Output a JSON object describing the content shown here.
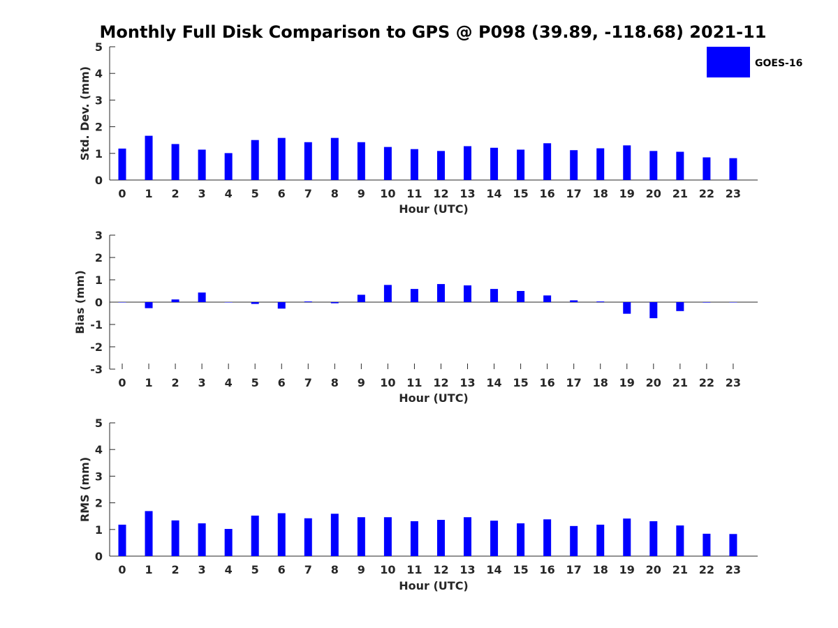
{
  "figure_title": "Monthly Full Disk Comparison to GPS @ P098 (39.89, -118.68) 2021-11",
  "legend": {
    "label": "GOES-16",
    "color": "#0000ff"
  },
  "chart_data": [
    {
      "type": "bar",
      "xlabel": "Hour (UTC)",
      "ylabel": "Std. Dev. (mm)",
      "ylim": [
        0,
        5
      ],
      "yticks": [
        "0",
        "1",
        "2",
        "3",
        "4",
        "5"
      ],
      "categories": [
        "0",
        "1",
        "2",
        "3",
        "4",
        "5",
        "6",
        "7",
        "8",
        "9",
        "10",
        "11",
        "12",
        "13",
        "14",
        "15",
        "16",
        "17",
        "18",
        "19",
        "20",
        "21",
        "22",
        "23"
      ],
      "series": [
        {
          "name": "GOES-16",
          "color": "#0000ff",
          "values": [
            1.18,
            1.66,
            1.35,
            1.14,
            1.01,
            1.5,
            1.58,
            1.42,
            1.58,
            1.42,
            1.24,
            1.16,
            1.09,
            1.27,
            1.21,
            1.14,
            1.38,
            1.12,
            1.19,
            1.3,
            1.09,
            1.06,
            0.85,
            0.82
          ]
        }
      ],
      "legend_position": "top-right",
      "grid": false
    },
    {
      "type": "bar",
      "xlabel": "Hour (UTC)",
      "ylabel": "Bias (mm)",
      "ylim": [
        -3,
        3
      ],
      "yticks": [
        "-3",
        "-2",
        "-1",
        "0",
        "1",
        "2",
        "3"
      ],
      "categories": [
        "0",
        "1",
        "2",
        "3",
        "4",
        "5",
        "6",
        "7",
        "8",
        "9",
        "10",
        "11",
        "12",
        "13",
        "14",
        "15",
        "16",
        "17",
        "18",
        "19",
        "20",
        "21",
        "22",
        "23"
      ],
      "series": [
        {
          "name": "GOES-16",
          "color": "#0000ff",
          "values": [
            0.0,
            -0.27,
            0.12,
            0.43,
            0.0,
            -0.08,
            -0.29,
            0.03,
            -0.05,
            0.33,
            0.77,
            0.59,
            0.81,
            0.75,
            0.59,
            0.5,
            0.3,
            0.08,
            0.03,
            -0.52,
            -0.72,
            -0.4,
            -0.02,
            0.0
          ]
        }
      ],
      "grid": false
    },
    {
      "type": "bar",
      "xlabel": "Hour (UTC)",
      "ylabel": "RMS (mm)",
      "ylim": [
        0,
        5
      ],
      "yticks": [
        "0",
        "1",
        "2",
        "3",
        "4",
        "5"
      ],
      "categories": [
        "0",
        "1",
        "2",
        "3",
        "4",
        "5",
        "6",
        "7",
        "8",
        "9",
        "10",
        "11",
        "12",
        "13",
        "14",
        "15",
        "16",
        "17",
        "18",
        "19",
        "20",
        "21",
        "22",
        "23"
      ],
      "series": [
        {
          "name": "GOES-16",
          "color": "#0000ff",
          "values": [
            1.18,
            1.69,
            1.34,
            1.23,
            1.02,
            1.52,
            1.61,
            1.42,
            1.59,
            1.46,
            1.46,
            1.31,
            1.36,
            1.46,
            1.33,
            1.23,
            1.38,
            1.13,
            1.18,
            1.41,
            1.31,
            1.15,
            0.84,
            0.83
          ]
        }
      ],
      "grid": false
    }
  ]
}
